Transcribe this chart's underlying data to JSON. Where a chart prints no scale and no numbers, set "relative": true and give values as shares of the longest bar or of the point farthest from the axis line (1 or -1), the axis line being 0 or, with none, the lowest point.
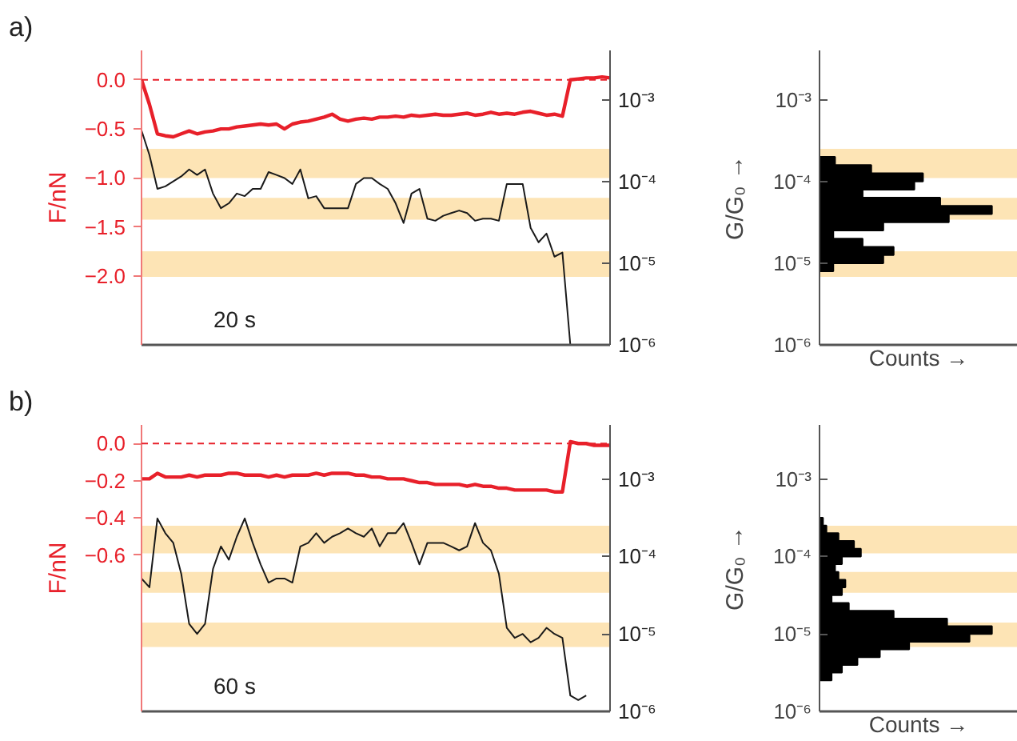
{
  "chart_data": [
    {
      "type": "line",
      "categories": [
        null,
        null,
        null,
        null,
        null,
        null,
        null,
        null,
        null,
        null,
        null,
        null,
        null,
        null,
        null,
        null,
        null,
        null,
        null,
        null,
        null,
        null,
        null,
        null,
        null,
        null,
        null,
        null,
        null,
        null,
        null,
        null,
        null,
        null,
        null,
        null,
        null,
        null,
        null,
        null,
        null,
        null,
        null,
        null,
        null,
        null,
        null,
        null,
        null,
        null,
        null,
        null,
        null,
        null,
        null,
        null,
        null,
        null,
        null,
        null
      ],
      "series": [
        {
          "color": "#e8202a",
          "values": [
            0.0,
            -0.25,
            -0.55,
            -0.57,
            -0.58,
            -0.55,
            -0.52,
            -0.55,
            -0.53,
            -0.52,
            -0.5,
            -0.5,
            -0.48,
            -0.47,
            -0.46,
            -0.45,
            -0.46,
            -0.45,
            -0.5,
            -0.45,
            -0.43,
            -0.42,
            -0.4,
            -0.38,
            -0.35,
            -0.4,
            -0.42,
            -0.4,
            -0.39,
            -0.4,
            -0.38,
            -0.38,
            -0.37,
            -0.38,
            -0.36,
            -0.37,
            -0.36,
            -0.35,
            -0.36,
            -0.36,
            -0.35,
            -0.34,
            -0.36,
            -0.35,
            -0.33,
            -0.35,
            -0.34,
            -0.35,
            -0.33,
            -0.32,
            -0.34,
            -0.36,
            -0.35,
            -0.37,
            0.0,
            0.01,
            0.02,
            0.02,
            0.03,
            0.02
          ]
        },
        {
          "color": "#1a1a1a",
          "axis": "y2",
          "values": [
            0.00042,
            0.00021,
            8.1e-05,
            8.7e-05,
            0.0001,
            0.000115,
            0.00014,
            0.00012,
            0.00014,
            7.1e-05,
            4.7e-05,
            5.4e-05,
            7.1e-05,
            6.6e-05,
            8.1e-05,
            8.1e-05,
            0.00013,
            0.00012,
            0.00011,
            9.3e-05,
            0.00014,
            6.2e-05,
            6.6e-05,
            4.7e-05,
            4.7e-05,
            4.7e-05,
            4.7e-05,
            9.3e-05,
            0.00011,
            0.00011,
            9.3e-05,
            8.1e-05,
            5.4e-05,
            3.1e-05,
            7.1e-05,
            8.1e-05,
            3.5e-05,
            3.3e-05,
            3.8e-05,
            4.1e-05,
            4.4e-05,
            4.1e-05,
            3.3e-05,
            3.5e-05,
            3.5e-05,
            3.3e-05,
            9.3e-05,
            9.3e-05,
            9.3e-05,
            2.7e-05,
            1.8e-05,
            2.3e-05,
            1.2e-05,
            1.35e-05,
            1e-06,
            null,
            null,
            null,
            null,
            null
          ]
        }
      ],
      "ylabel": "F/nN",
      "ylim": [
        -2.7,
        0.3
      ],
      "yticks": [
        {
          "value": -2.0,
          "label": "−2.0"
        },
        {
          "value": -1.5,
          "label": "−1.5"
        },
        {
          "value": -1.0,
          "label": "−1.0"
        },
        {
          "value": -0.5,
          "label": "−0.5"
        },
        {
          "value": 0,
          "label": "0.0"
        }
      ],
      "y2lim": [
        1e-06,
        0.004
      ],
      "y2ticks": [
        {
          "value": 1e-06,
          "label": "10⁻⁶"
        },
        {
          "value": 1e-05,
          "label": "10⁻⁵"
        },
        {
          "value": 0.0001,
          "label": "10⁻⁴"
        },
        {
          "value": 0.001,
          "label": "10⁻³"
        }
      ],
      "log": "y2",
      "tick_labels": "y",
      "ref_lines": [
        {
          "axis": "y",
          "value": 0,
          "color": "#e8202a",
          "line_style": "dashed"
        }
      ],
      "bands": [
        {
          "axis": "y2",
          "from": 0.00011,
          "to": 0.00025,
          "color": "#fde4b5"
        },
        {
          "axis": "y2",
          "from": 3.4e-05,
          "to": 6.3e-05,
          "color": "#fde4b5"
        },
        {
          "axis": "y2",
          "from": 6.8e-06,
          "to": 1.4e-05,
          "color": "#fde4b5"
        }
      ],
      "annotations": [
        "a)",
        "20 s"
      ]
    },
    {
      "type": "bar",
      "orientation": "horizontal",
      "relative": true,
      "color": "#000000",
      "x": [
        8.9e-06,
        1.12e-05,
        1.41e-05,
        1.78e-05,
        2.24e-05,
        2.82e-05,
        3.55e-05,
        4.47e-05,
        5.62e-05,
        7.08e-05,
        8.91e-05,
        0.000112,
        0.000141,
        0.000178
      ],
      "values": [
        0.08,
        0.37,
        0.43,
        0.25,
        0.08,
        0.37,
        0.75,
        1.0,
        0.7,
        0.25,
        0.55,
        0.6,
        0.3,
        0.09
      ],
      "ylabel": "G/G₀ →",
      "xlabel": "Counts →",
      "ylim": [
        1e-06,
        0.004
      ],
      "yticks": [
        {
          "value": 1e-06,
          "label": "10⁻⁶"
        },
        {
          "value": 1e-05,
          "label": "10⁻⁵"
        },
        {
          "value": 0.0001,
          "label": "10⁻⁴"
        },
        {
          "value": 0.001,
          "label": "10⁻³"
        }
      ],
      "log": "y",
      "tick_labels": "y",
      "bands": [
        {
          "axis": "y",
          "from": 0.00011,
          "to": 0.00025,
          "color": "#fde4b5"
        },
        {
          "axis": "y",
          "from": 3.4e-05,
          "to": 6.3e-05,
          "color": "#fde4b5"
        },
        {
          "axis": "y",
          "from": 6.8e-06,
          "to": 1.4e-05,
          "color": "#fde4b5"
        }
      ]
    },
    {
      "type": "line",
      "categories": [
        null,
        null,
        null,
        null,
        null,
        null,
        null,
        null,
        null,
        null,
        null,
        null,
        null,
        null,
        null,
        null,
        null,
        null,
        null,
        null,
        null,
        null,
        null,
        null,
        null,
        null,
        null,
        null,
        null,
        null,
        null,
        null,
        null,
        null,
        null,
        null,
        null,
        null,
        null,
        null,
        null,
        null,
        null,
        null,
        null,
        null,
        null,
        null,
        null,
        null,
        null,
        null,
        null,
        null,
        null,
        null,
        null,
        null,
        null,
        null
      ],
      "series": [
        {
          "color": "#e8202a",
          "values": [
            -0.19,
            -0.19,
            -0.16,
            -0.18,
            -0.18,
            -0.18,
            -0.17,
            -0.18,
            -0.17,
            -0.17,
            -0.17,
            -0.16,
            -0.16,
            -0.17,
            -0.17,
            -0.17,
            -0.18,
            -0.17,
            -0.18,
            -0.17,
            -0.17,
            -0.17,
            -0.16,
            -0.17,
            -0.16,
            -0.16,
            -0.16,
            -0.17,
            -0.17,
            -0.18,
            -0.18,
            -0.19,
            -0.19,
            -0.19,
            -0.2,
            -0.21,
            -0.21,
            -0.22,
            -0.22,
            -0.22,
            -0.22,
            -0.23,
            -0.22,
            -0.23,
            -0.23,
            -0.24,
            -0.24,
            -0.25,
            -0.25,
            -0.25,
            -0.25,
            -0.25,
            -0.26,
            -0.26,
            0.01,
            0.0,
            0.0,
            -0.01,
            -0.01,
            -0.01
          ]
        },
        {
          "color": "#1a1a1a",
          "axis": "y2",
          "values": [
            5.2e-05,
            4e-05,
            0.00031,
            0.0002,
            0.00015,
            6e-05,
            1.35e-05,
            1e-05,
            1.35e-05,
            6.9e-05,
            0.000135,
            9.1e-05,
            0.00018,
            0.00031,
            0.00015,
            7.9e-05,
            4.6e-05,
            5.2e-05,
            5.2e-05,
            4.6e-05,
            0.000135,
            0.00015,
            0.0002,
            0.00015,
            0.00018,
            0.0002,
            0.00023,
            0.0002,
            0.00018,
            0.00023,
            0.000135,
            0.0002,
            0.0002,
            0.00027,
            0.00015,
            7.9e-05,
            0.00015,
            0.00015,
            0.00015,
            0.000135,
            0.00012,
            0.000135,
            0.00027,
            0.00015,
            0.00012,
            6e-05,
            1.2e-05,
            8.9e-06,
            1e-05,
            7.8e-06,
            8.9e-06,
            1.2e-05,
            1e-05,
            8.9e-06,
            1.6e-06,
            1.4e-06,
            1.6e-06,
            null,
            null,
            null
          ]
        }
      ],
      "ylabel": "F/nN",
      "ylim": [
        -1.44,
        0.1
      ],
      "yticks": [
        {
          "value": -0.6,
          "label": "−0.6"
        },
        {
          "value": -0.4,
          "label": "−0.4"
        },
        {
          "value": -0.2,
          "label": "−0.2"
        },
        {
          "value": 0,
          "label": "0.0"
        }
      ],
      "y2lim": [
        1e-06,
        0.005
      ],
      "y2ticks": [
        {
          "value": 1e-06,
          "label": "10⁻⁶"
        },
        {
          "value": 1e-05,
          "label": "10⁻⁵"
        },
        {
          "value": 0.0001,
          "label": "10⁻⁴"
        },
        {
          "value": 0.001,
          "label": "10⁻³"
        }
      ],
      "log": "y2",
      "tick_labels": "y",
      "ref_lines": [
        {
          "axis": "y",
          "value": 0,
          "color": "#e8202a",
          "line_style": "dashed"
        }
      ],
      "bands": [
        {
          "axis": "y2",
          "from": 0.00011,
          "to": 0.00025,
          "color": "#fde4b5"
        },
        {
          "axis": "y2",
          "from": 3.4e-05,
          "to": 6.3e-05,
          "color": "#fde4b5"
        },
        {
          "axis": "y2",
          "from": 6.8e-06,
          "to": 1.4e-05,
          "color": "#fde4b5"
        }
      ],
      "annotations": [
        "b)",
        "60 s"
      ]
    },
    {
      "type": "bar",
      "orientation": "horizontal",
      "relative": true,
      "color": "#000000",
      "x": [
        2.82e-06,
        3.55e-06,
        4.47e-06,
        5.62e-06,
        7.08e-06,
        8.91e-06,
        1.12e-05,
        1.41e-05,
        1.78e-05,
        2.24e-05,
        2.82e-05,
        3.55e-05,
        4.47e-05,
        5.62e-05,
        7.08e-05,
        8.91e-05,
        0.000112,
        0.000141,
        0.000178,
        0.000224,
        0.000282
      ],
      "values": [
        0.07,
        0.13,
        0.22,
        0.35,
        0.52,
        0.87,
        1.0,
        0.74,
        0.43,
        0.17,
        0.07,
        0.13,
        0.15,
        0.11,
        0.09,
        0.13,
        0.24,
        0.2,
        0.11,
        0.04,
        0.02
      ],
      "ylabel": "G/G₀ →",
      "xlabel": "Counts →",
      "ylim": [
        1e-06,
        0.005
      ],
      "yticks": [
        {
          "value": 1e-06,
          "label": "10⁻⁶"
        },
        {
          "value": 1e-05,
          "label": "10⁻⁵"
        },
        {
          "value": 0.0001,
          "label": "10⁻⁴"
        },
        {
          "value": 0.001,
          "label": "10⁻³"
        }
      ],
      "log": "y",
      "tick_labels": "y",
      "bands": [
        {
          "axis": "y",
          "from": 0.00011,
          "to": 0.00025,
          "color": "#fde4b5"
        },
        {
          "axis": "y",
          "from": 3.4e-05,
          "to": 6.3e-05,
          "color": "#fde4b5"
        },
        {
          "axis": "y",
          "from": 6.8e-06,
          "to": 1.4e-05,
          "color": "#fde4b5"
        }
      ]
    }
  ]
}
